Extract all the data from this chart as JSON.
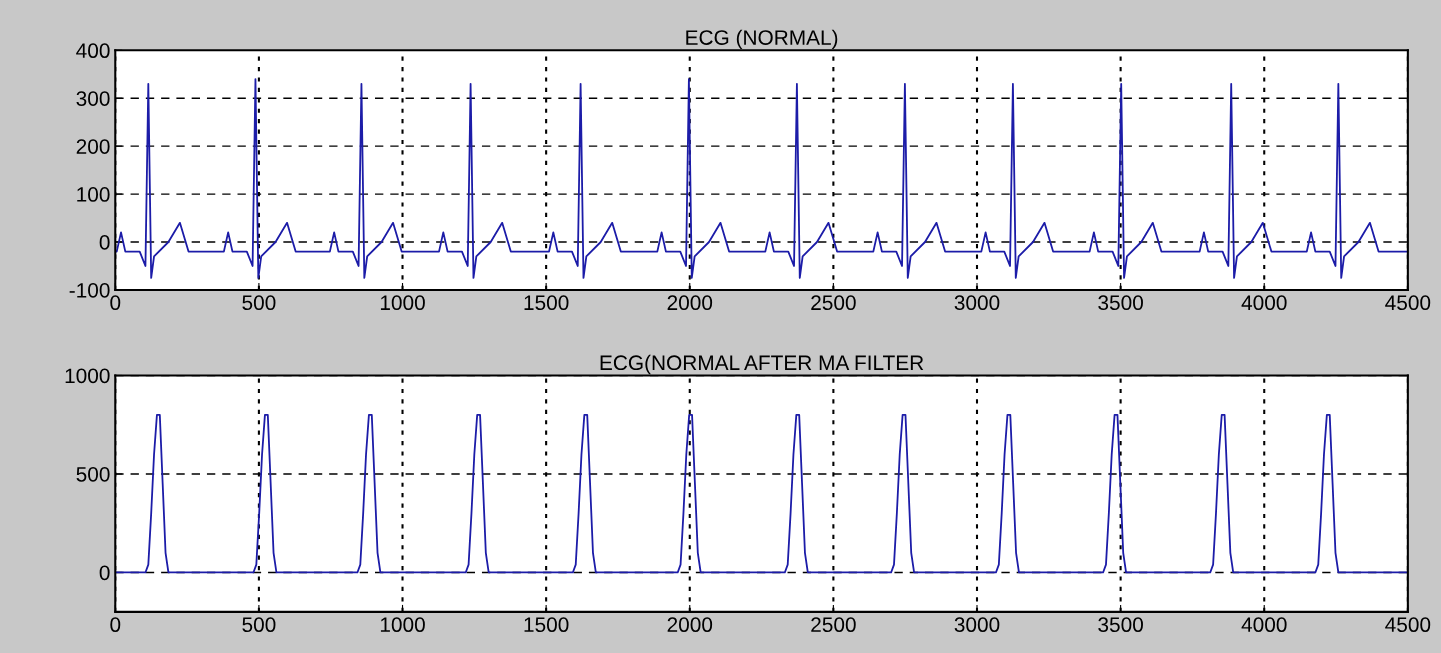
{
  "chart_data": [
    {
      "type": "line",
      "title": "ECG (NORMAL)",
      "xlim": [
        0,
        4500
      ],
      "xticks": [
        0,
        500,
        1000,
        1500,
        2000,
        2500,
        3000,
        3500,
        4000,
        4500
      ],
      "ylim": [
        -100,
        400
      ],
      "yticks": [
        -100,
        0,
        100,
        200,
        300,
        400
      ],
      "grid": true,
      "series": [
        {
          "color": "#1c1ca8",
          "x": [
            0,
            5,
            20,
            35,
            85,
            105,
            115,
            125,
            135,
            185,
            225,
            255,
            378,
            393,
            408,
            458,
            478,
            488,
            498,
            508,
            558,
            598,
            628,
            747,
            762,
            777,
            827,
            847,
            857,
            867,
            877,
            927,
            967,
            997,
            1127,
            1142,
            1157,
            1207,
            1227,
            1237,
            1247,
            1257,
            1307,
            1347,
            1377,
            1510,
            1525,
            1540,
            1590,
            1610,
            1620,
            1630,
            1640,
            1690,
            1730,
            1760,
            1887,
            1902,
            1917,
            1967,
            1987,
            1997,
            2007,
            2017,
            2067,
            2107,
            2137,
            2263,
            2278,
            2293,
            2343,
            2363,
            2373,
            2383,
            2393,
            2443,
            2483,
            2513,
            2639,
            2654,
            2669,
            2719,
            2739,
            2749,
            2759,
            2769,
            2819,
            2859,
            2889,
            3015,
            3030,
            3045,
            3095,
            3115,
            3125,
            3135,
            3145,
            3195,
            3235,
            3265,
            3392,
            3407,
            3422,
            3472,
            3492,
            3502,
            3512,
            3522,
            3572,
            3612,
            3642,
            3775,
            3790,
            3805,
            3855,
            3875,
            3885,
            3895,
            3905,
            3955,
            3995,
            4025,
            4148,
            4163,
            4178,
            4228,
            4248,
            4258,
            4268,
            4278,
            4328,
            4368,
            4398,
            4500
          ],
          "values": [
            -20,
            -20,
            20,
            -20,
            -20,
            -50,
            330,
            -75,
            -30,
            0,
            40,
            -20,
            -20,
            20,
            -20,
            -20,
            -50,
            340,
            -75,
            -30,
            0,
            40,
            -20,
            -20,
            20,
            -20,
            -20,
            -50,
            330,
            -75,
            -30,
            0,
            40,
            -20,
            -20,
            20,
            -20,
            -20,
            -50,
            330,
            -75,
            -30,
            0,
            40,
            -20,
            -20,
            20,
            -20,
            -20,
            -50,
            330,
            -75,
            -30,
            0,
            40,
            -20,
            -20,
            20,
            -20,
            -20,
            -50,
            340,
            -75,
            -30,
            0,
            40,
            -20,
            -20,
            20,
            -20,
            -20,
            -50,
            330,
            -75,
            -30,
            0,
            40,
            -20,
            -20,
            20,
            -20,
            -20,
            -50,
            330,
            -75,
            -30,
            0,
            40,
            -20,
            -20,
            20,
            -20,
            -20,
            -50,
            330,
            -75,
            -30,
            0,
            40,
            -20,
            -20,
            20,
            -20,
            -20,
            -50,
            330,
            -75,
            -30,
            0,
            40,
            -20,
            -20,
            20,
            -20,
            -20,
            -50,
            330,
            -75,
            -30,
            0,
            40,
            -20,
            -20,
            20,
            -20,
            -20,
            -50,
            330,
            -75,
            -30,
            0,
            40,
            -20,
            -20
          ]
        }
      ]
    },
    {
      "type": "line",
      "title": "ECG(NORMAL AFTER MA FILTER",
      "xlim": [
        0,
        4500
      ],
      "xticks": [
        0,
        500,
        1000,
        1500,
        2000,
        2500,
        3000,
        3500,
        4000,
        4500
      ],
      "ylim": [
        -200,
        1000
      ],
      "yticks": [
        0,
        500,
        1000
      ],
      "grid": true,
      "series": [
        {
          "color": "#1c1ca8",
          "x": [
            0,
            105,
            115,
            125,
            135,
            145,
            155,
            165,
            175,
            185,
            481,
            491,
            501,
            511,
            521,
            531,
            541,
            551,
            561,
            843,
            853,
            863,
            873,
            883,
            893,
            903,
            913,
            923,
            1220,
            1230,
            1240,
            1250,
            1260,
            1270,
            1280,
            1290,
            1300,
            1593,
            1603,
            1613,
            1623,
            1633,
            1643,
            1653,
            1663,
            1673,
            1958,
            1968,
            1978,
            1988,
            1998,
            2008,
            2018,
            2028,
            2038,
            2331,
            2341,
            2351,
            2361,
            2371,
            2381,
            2391,
            2401,
            2411,
            2701,
            2711,
            2721,
            2731,
            2741,
            2751,
            2761,
            2771,
            2781,
            3066,
            3076,
            3086,
            3096,
            3106,
            3116,
            3126,
            3136,
            3146,
            3439,
            3449,
            3459,
            3469,
            3479,
            3489,
            3499,
            3509,
            3519,
            3812,
            3822,
            3832,
            3842,
            3852,
            3862,
            3872,
            3882,
            3892,
            4178,
            4188,
            4198,
            4208,
            4218,
            4228,
            4238,
            4248,
            4258,
            4500
          ],
          "values": [
            0,
            0,
            40,
            300,
            600,
            800,
            800,
            450,
            100,
            0,
            0,
            40,
            300,
            600,
            800,
            800,
            450,
            100,
            0,
            0,
            40,
            300,
            600,
            800,
            800,
            450,
            100,
            0,
            0,
            40,
            300,
            600,
            800,
            800,
            450,
            100,
            0,
            0,
            40,
            300,
            600,
            800,
            800,
            450,
            100,
            0,
            0,
            40,
            300,
            600,
            800,
            800,
            450,
            100,
            0,
            0,
            40,
            300,
            600,
            800,
            800,
            450,
            100,
            0,
            0,
            40,
            300,
            600,
            800,
            800,
            450,
            100,
            0,
            0,
            40,
            300,
            600,
            800,
            800,
            450,
            100,
            0,
            0,
            40,
            300,
            600,
            800,
            800,
            450,
            100,
            0,
            0,
            40,
            300,
            600,
            800,
            800,
            450,
            100,
            0,
            0,
            40,
            300,
            600,
            800,
            800,
            450,
            100,
            0,
            0
          ]
        }
      ]
    }
  ]
}
